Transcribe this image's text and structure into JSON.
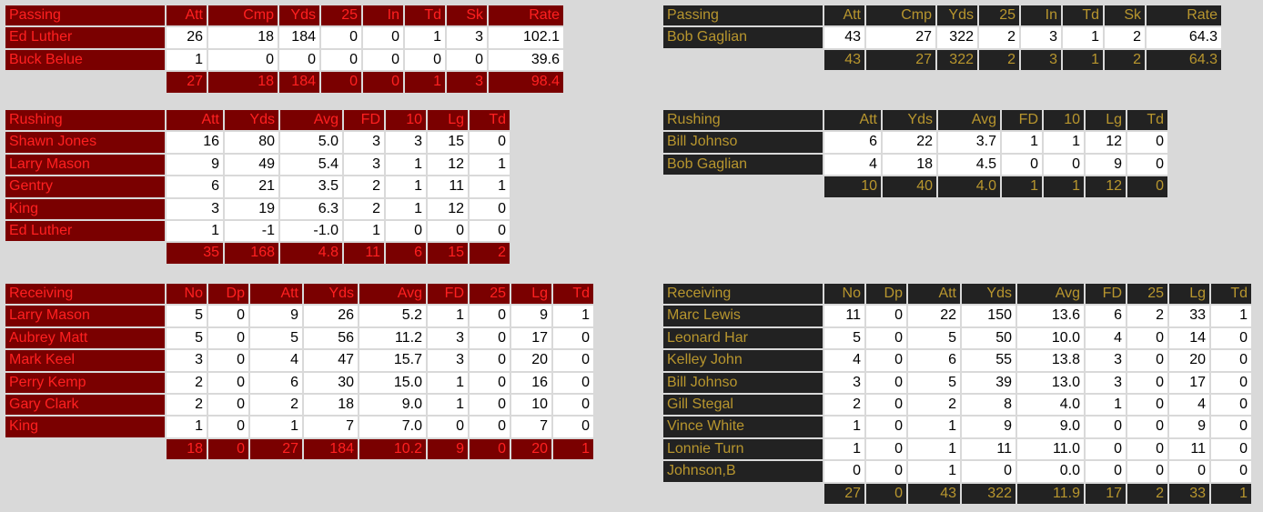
{
  "home": {
    "passing": {
      "headers": [
        "Passing",
        "Att",
        "Cmp",
        "Yds",
        "25",
        "In",
        "Td",
        "Sk",
        "Rate"
      ],
      "rows": [
        [
          "Ed Luther",
          "26",
          "18",
          "184",
          "0",
          "0",
          "1",
          "3",
          "102.1"
        ],
        [
          "Buck Belue",
          "1",
          "0",
          "0",
          "0",
          "0",
          "0",
          "0",
          "39.6"
        ]
      ],
      "totals": [
        "27",
        "18",
        "184",
        "0",
        "0",
        "1",
        "3",
        "98.4"
      ]
    },
    "rushing": {
      "headers": [
        "Rushing",
        "Att",
        "Yds",
        "Avg",
        "FD",
        "10",
        "Lg",
        "Td"
      ],
      "rows": [
        [
          "Shawn Jones",
          "16",
          "80",
          "5.0",
          "3",
          "3",
          "15",
          "0"
        ],
        [
          "Larry Mason",
          "9",
          "49",
          "5.4",
          "3",
          "1",
          "12",
          "1"
        ],
        [
          "Gentry",
          "6",
          "21",
          "3.5",
          "2",
          "1",
          "11",
          "1"
        ],
        [
          "King",
          "3",
          "19",
          "6.3",
          "2",
          "1",
          "12",
          "0"
        ],
        [
          "Ed Luther",
          "1",
          "-1",
          "-1.0",
          "1",
          "0",
          "0",
          "0"
        ]
      ],
      "totals": [
        "35",
        "168",
        "4.8",
        "11",
        "6",
        "15",
        "2"
      ]
    },
    "receiving": {
      "headers": [
        "Receiving",
        "No",
        "Dp",
        "Att",
        "Yds",
        "Avg",
        "FD",
        "25",
        "Lg",
        "Td"
      ],
      "rows": [
        [
          "Larry Mason",
          "5",
          "0",
          "9",
          "26",
          "5.2",
          "1",
          "0",
          "9",
          "1"
        ],
        [
          "Aubrey Matt",
          "5",
          "0",
          "5",
          "56",
          "11.2",
          "3",
          "0",
          "17",
          "0"
        ],
        [
          "Mark Keel",
          "3",
          "0",
          "4",
          "47",
          "15.7",
          "3",
          "0",
          "20",
          "0"
        ],
        [
          "Perry Kemp",
          "2",
          "0",
          "6",
          "30",
          "15.0",
          "1",
          "0",
          "16",
          "0"
        ],
        [
          "Gary Clark",
          "2",
          "0",
          "2",
          "18",
          "9.0",
          "1",
          "0",
          "10",
          "0"
        ],
        [
          "King",
          "1",
          "0",
          "1",
          "7",
          "7.0",
          "0",
          "0",
          "7",
          "0"
        ]
      ],
      "totals": [
        "18",
        "0",
        "27",
        "184",
        "10.2",
        "9",
        "0",
        "20",
        "1"
      ]
    }
  },
  "away": {
    "passing": {
      "headers": [
        "Passing",
        "Att",
        "Cmp",
        "Yds",
        "25",
        "In",
        "Td",
        "Sk",
        "Rate"
      ],
      "rows": [
        [
          "Bob Gaglian",
          "43",
          "27",
          "322",
          "2",
          "3",
          "1",
          "2",
          "64.3"
        ]
      ],
      "totals": [
        "43",
        "27",
        "322",
        "2",
        "3",
        "1",
        "2",
        "64.3"
      ]
    },
    "rushing": {
      "headers": [
        "Rushing",
        "Att",
        "Yds",
        "Avg",
        "FD",
        "10",
        "Lg",
        "Td"
      ],
      "rows": [
        [
          "Bill Johnso",
          "6",
          "22",
          "3.7",
          "1",
          "1",
          "12",
          "0"
        ],
        [
          "Bob Gaglian",
          "4",
          "18",
          "4.5",
          "0",
          "0",
          "9",
          "0"
        ]
      ],
      "totals": [
        "10",
        "40",
        "4.0",
        "1",
        "1",
        "12",
        "0"
      ]
    },
    "receiving": {
      "headers": [
        "Receiving",
        "No",
        "Dp",
        "Att",
        "Yds",
        "Avg",
        "FD",
        "25",
        "Lg",
        "Td"
      ],
      "rows": [
        [
          "Marc Lewis",
          "11",
          "0",
          "22",
          "150",
          "13.6",
          "6",
          "2",
          "33",
          "1"
        ],
        [
          "Leonard Har",
          "5",
          "0",
          "5",
          "50",
          "10.0",
          "4",
          "0",
          "14",
          "0"
        ],
        [
          "Kelley John",
          "4",
          "0",
          "6",
          "55",
          "13.8",
          "3",
          "0",
          "20",
          "0"
        ],
        [
          "Bill Johnso",
          "3",
          "0",
          "5",
          "39",
          "13.0",
          "3",
          "0",
          "17",
          "0"
        ],
        [
          "Gill Stegal",
          "2",
          "0",
          "2",
          "8",
          "4.0",
          "1",
          "0",
          "4",
          "0"
        ],
        [
          "Vince White",
          "1",
          "0",
          "1",
          "9",
          "9.0",
          "0",
          "0",
          "9",
          "0"
        ],
        [
          "Lonnie Turn",
          "1",
          "0",
          "1",
          "11",
          "11.0",
          "0",
          "0",
          "11",
          "0"
        ],
        [
          "Johnson,B",
          "0",
          "0",
          "1",
          "0",
          "0.0",
          "0",
          "0",
          "0",
          "0"
        ]
      ],
      "totals": [
        "27",
        "0",
        "43",
        "322",
        "11.9",
        "17",
        "2",
        "33",
        "1"
      ]
    }
  },
  "colors": {
    "home_bg": "#7a0000",
    "home_text": "#ff2020",
    "away_bg": "#222222",
    "away_text": "#b8962e",
    "page_bg": "#d9d9d9"
  }
}
